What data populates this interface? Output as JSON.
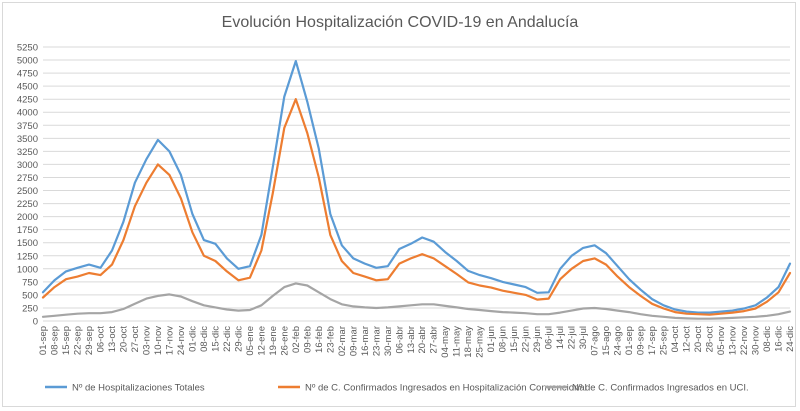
{
  "chart_data": {
    "type": "line",
    "title": "Evolución Hospitalización COVID-19 en Andalucía",
    "xlabel": "",
    "ylabel": "",
    "ylim": [
      0,
      5250
    ],
    "ytick_step": 250,
    "grid": "horizontal",
    "legend_position": "bottom",
    "x_tick_labels": [
      "01-sep",
      "08-sep",
      "15-sep",
      "22-sep",
      "29-sep",
      "06-oct",
      "13-oct",
      "20-oct",
      "27-oct",
      "03-nov",
      "10-nov",
      "17-nov",
      "24-nov",
      "01-dic",
      "08-dic",
      "15-dic",
      "22-dic",
      "29-dic",
      "05-ene",
      "12-ene",
      "19-ene",
      "26-ene",
      "02-feb",
      "09-feb",
      "16-feb",
      "23-feb",
      "02-mar",
      "09-mar",
      "16-mar",
      "23-mar",
      "30-mar",
      "06-abr",
      "13-abr",
      "20-abr",
      "27-abr",
      "04-may",
      "11-may",
      "18-may",
      "25-may",
      "01-jun",
      "08-jun",
      "15-jun",
      "22-jun",
      "29-jun",
      "06-jul",
      "14-jul",
      "22-jul",
      "30-jul",
      "07-ago",
      "15-ago",
      "24-ago",
      "01-sep",
      "09-sep",
      "17-sep",
      "25-sep",
      "04-oct",
      "12-oct",
      "20-oct",
      "28-oct",
      "05-nov",
      "13-nov",
      "22-nov",
      "30-nov",
      "08-dic",
      "16-dic",
      "24-dic"
    ],
    "series": [
      {
        "name": "Nº de Hospitalizaciones Totales",
        "color": "#5b9bd5",
        "values": [
          550,
          780,
          950,
          1020,
          1080,
          1020,
          1350,
          1900,
          2650,
          3100,
          3470,
          3250,
          2800,
          2050,
          1550,
          1480,
          1200,
          1000,
          1050,
          1650,
          2950,
          4300,
          4980,
          4200,
          3300,
          2050,
          1450,
          1200,
          1100,
          1020,
          1050,
          1380,
          1480,
          1600,
          1520,
          1320,
          1150,
          960,
          880,
          820,
          750,
          700,
          650,
          540,
          550,
          1000,
          1250,
          1400,
          1450,
          1300,
          1050,
          800,
          600,
          420,
          300,
          220,
          180,
          160,
          160,
          180,
          200,
          240,
          300,
          450,
          650,
          1100
        ]
      },
      {
        "name": "Nº de C. Confirmados Ingresados en Hospitalización Convencional",
        "color": "#ed7d31",
        "values": [
          450,
          650,
          800,
          850,
          920,
          880,
          1080,
          1550,
          2200,
          2650,
          3000,
          2800,
          2350,
          1700,
          1250,
          1150,
          950,
          780,
          830,
          1350,
          2450,
          3700,
          4250,
          3600,
          2750,
          1650,
          1150,
          920,
          850,
          780,
          800,
          1100,
          1200,
          1280,
          1200,
          1050,
          900,
          740,
          680,
          640,
          580,
          540,
          500,
          410,
          430,
          800,
          1000,
          1150,
          1200,
          1080,
          850,
          650,
          480,
          330,
          240,
          170,
          140,
          130,
          120,
          140,
          160,
          190,
          240,
          370,
          550,
          920
        ]
      },
      {
        "name": "Nº de C. Confirmados Ingresados en UCI.",
        "color": "#a5a5a5",
        "values": [
          80,
          100,
          120,
          140,
          150,
          150,
          170,
          230,
          330,
          430,
          480,
          510,
          470,
          380,
          300,
          260,
          220,
          200,
          210,
          300,
          480,
          650,
          720,
          680,
          550,
          420,
          320,
          280,
          260,
          250,
          260,
          280,
          300,
          320,
          320,
          290,
          260,
          230,
          210,
          190,
          170,
          160,
          150,
          130,
          130,
          160,
          200,
          240,
          250,
          230,
          200,
          170,
          130,
          100,
          80,
          60,
          50,
          45,
          45,
          50,
          60,
          70,
          80,
          100,
          130,
          180
        ]
      }
    ]
  }
}
